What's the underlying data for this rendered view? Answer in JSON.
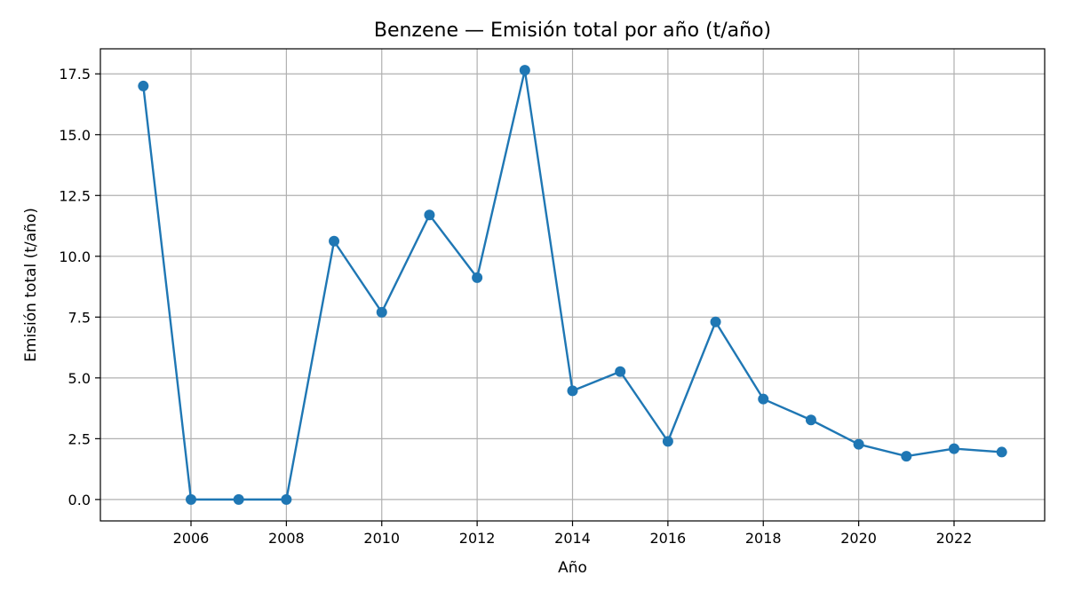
{
  "chart_data": {
    "type": "line",
    "title": "Benzene — Emisión total por año (t/año)",
    "xlabel": "Año",
    "ylabel": "Emisión total (t/año)",
    "x": [
      2005,
      2006,
      2007,
      2008,
      2009,
      2010,
      2011,
      2012,
      2013,
      2014,
      2015,
      2016,
      2017,
      2018,
      2019,
      2020,
      2021,
      2022,
      2023
    ],
    "series": [
      {
        "values": [
          17.0,
          0.0,
          0.0,
          0.0,
          10.62,
          7.7,
          11.7,
          9.12,
          17.65,
          4.47,
          5.26,
          2.39,
          7.3,
          4.13,
          3.27,
          2.27,
          1.78,
          2.09,
          1.95
        ],
        "color": "#1f77b4",
        "marker": "circle"
      }
    ],
    "xticks": [
      2006,
      2008,
      2010,
      2012,
      2014,
      2016,
      2018,
      2020,
      2022
    ],
    "xtick_labels": [
      "2006",
      "2008",
      "2010",
      "2012",
      "2014",
      "2016",
      "2018",
      "2020",
      "2022"
    ],
    "yticks": [
      0.0,
      2.5,
      5.0,
      7.5,
      10.0,
      12.5,
      15.0,
      17.5
    ],
    "ytick_labels": [
      "0.0",
      "2.5",
      "5.0",
      "7.5",
      "10.0",
      "12.5",
      "15.0",
      "17.5"
    ],
    "xlim": [
      2004.1,
      2023.9
    ],
    "ylim": [
      -0.88,
      18.53
    ],
    "grid": true,
    "legend": "none"
  }
}
